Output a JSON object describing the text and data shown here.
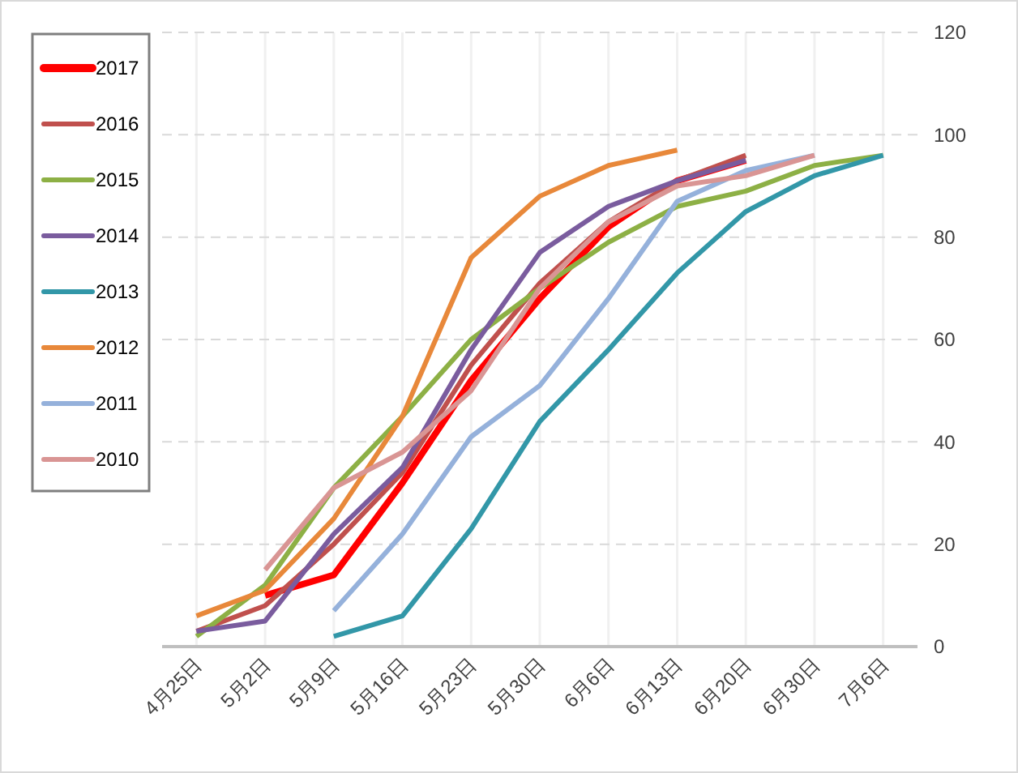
{
  "chart_data": {
    "type": "line",
    "categories": [
      "4月25日",
      "5月2日",
      "5月9日",
      "5月16日",
      "5月23日",
      "5月30日",
      "6月6日",
      "6月13日",
      "6月20日",
      "6月30日",
      "7月6日"
    ],
    "series": [
      {
        "name": "2017",
        "color": "#ff0000",
        "values": [
          null,
          10,
          14,
          32,
          52,
          68,
          82,
          91,
          95,
          null,
          null
        ]
      },
      {
        "name": "2016",
        "color": "#c0504d",
        "values": [
          3,
          8,
          20,
          34,
          55,
          71,
          83,
          91,
          96,
          null,
          null
        ]
      },
      {
        "name": "2015",
        "color": "#8db045",
        "values": [
          2,
          12,
          31,
          45,
          60,
          70,
          79,
          86,
          89,
          94,
          96
        ]
      },
      {
        "name": "2014",
        "color": "#7a5c9e",
        "values": [
          3,
          5,
          22,
          35,
          58,
          77,
          86,
          91,
          95,
          null,
          null
        ]
      },
      {
        "name": "2013",
        "color": "#3297a8",
        "values": [
          null,
          null,
          2,
          6,
          23,
          44,
          58,
          73,
          85,
          92,
          96
        ]
      },
      {
        "name": "2012",
        "color": "#e8883a",
        "values": [
          6,
          11,
          25,
          45,
          76,
          88,
          94,
          97,
          null,
          null,
          null
        ]
      },
      {
        "name": "2011",
        "color": "#95b1db",
        "values": [
          null,
          null,
          7,
          22,
          41,
          51,
          68,
          87,
          93,
          96,
          null
        ]
      },
      {
        "name": "2010",
        "color": "#d99594",
        "values": [
          null,
          15,
          31,
          38,
          50,
          70,
          83,
          90,
          92,
          96,
          null
        ]
      }
    ],
    "ylim": [
      0,
      120
    ],
    "yticks": [
      0,
      20,
      40,
      60,
      80,
      100,
      120
    ],
    "grid": true,
    "legend": "top left"
  }
}
